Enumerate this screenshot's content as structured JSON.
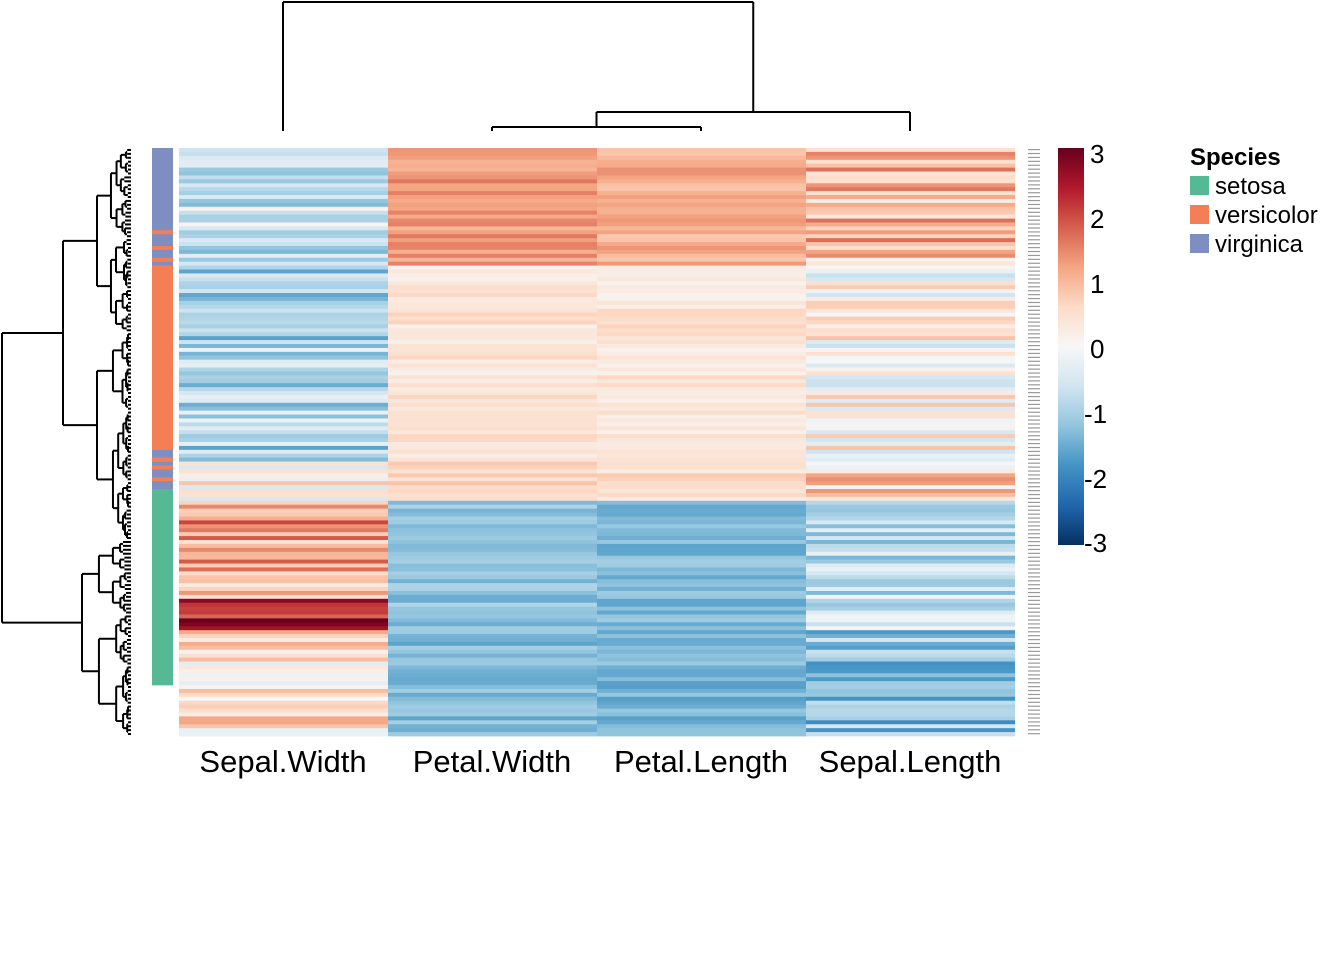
{
  "chart_data": {
    "type": "heatmap",
    "title": "",
    "columns": [
      "Sepal.Width",
      "Petal.Width",
      "Petal.Length",
      "Sepal.Length"
    ],
    "color_scale": {
      "min": -3,
      "max": 3,
      "ticks": [
        "3",
        "2",
        "1",
        "0",
        "-1",
        "-2",
        "-3"
      ],
      "colors": [
        "#053061",
        "#2166ac",
        "#4393c3",
        "#92c5de",
        "#d1e5f0",
        "#f7f7f7",
        "#fddbc7",
        "#f4a582",
        "#d6604d",
        "#b2182b",
        "#67001f"
      ]
    },
    "legend": {
      "title": "Species",
      "items": [
        {
          "label": "setosa",
          "color": "#55b995"
        },
        {
          "label": "versicolor",
          "color": "#f47f56"
        },
        {
          "label": "virginica",
          "color": "#7e8ec0"
        }
      ],
      "position": "right"
    },
    "row_annotation_blocks": [
      {
        "species": "virginica",
        "rows": 21
      },
      {
        "species": "versicolor",
        "rows": 1
      },
      {
        "species": "virginica",
        "rows": 3
      },
      {
        "species": "versicolor",
        "rows": 1
      },
      {
        "species": "virginica",
        "rows": 2
      },
      {
        "species": "versicolor",
        "rows": 1
      },
      {
        "species": "virginica",
        "rows": 1
      },
      {
        "species": "versicolor",
        "rows": 47
      },
      {
        "species": "virginica",
        "rows": 2
      },
      {
        "species": "versicolor",
        "rows": 1
      },
      {
        "species": "virginica",
        "rows": 1
      },
      {
        "species": "versicolor",
        "rows": 1
      },
      {
        "species": "virginica",
        "rows": 2
      },
      {
        "species": "versicolor",
        "rows": 1
      },
      {
        "species": "virginica",
        "rows": 2
      },
      {
        "species": "setosa",
        "rows": 50
      }
    ],
    "row_value_segments": [
      {
        "rows": 30,
        "values": [
          -0.6,
          1.3,
          1.1,
          0.9
        ]
      },
      {
        "rows": 50,
        "values": [
          -0.9,
          0.4,
          0.4,
          0.1
        ]
      },
      {
        "rows": 10,
        "values": [
          0.3,
          0.7,
          0.5,
          0.6
        ]
      },
      {
        "rows": 10,
        "values": [
          1.4,
          -1.2,
          -1.3,
          -0.9
        ]
      },
      {
        "rows": 15,
        "values": [
          1.1,
          -1.2,
          -1.3,
          -0.7
        ]
      },
      {
        "rows": 8,
        "values": [
          2.5,
          -1.2,
          -1.3,
          -0.4
        ]
      },
      {
        "rows": 27,
        "values": [
          0.4,
          -1.3,
          -1.4,
          -1.2
        ]
      }
    ],
    "col_dendrogram": {
      "order": [
        "Sepal.Width",
        "Petal.Width",
        "Petal.Length",
        "Sepal.Length"
      ]
    },
    "grid": false
  }
}
